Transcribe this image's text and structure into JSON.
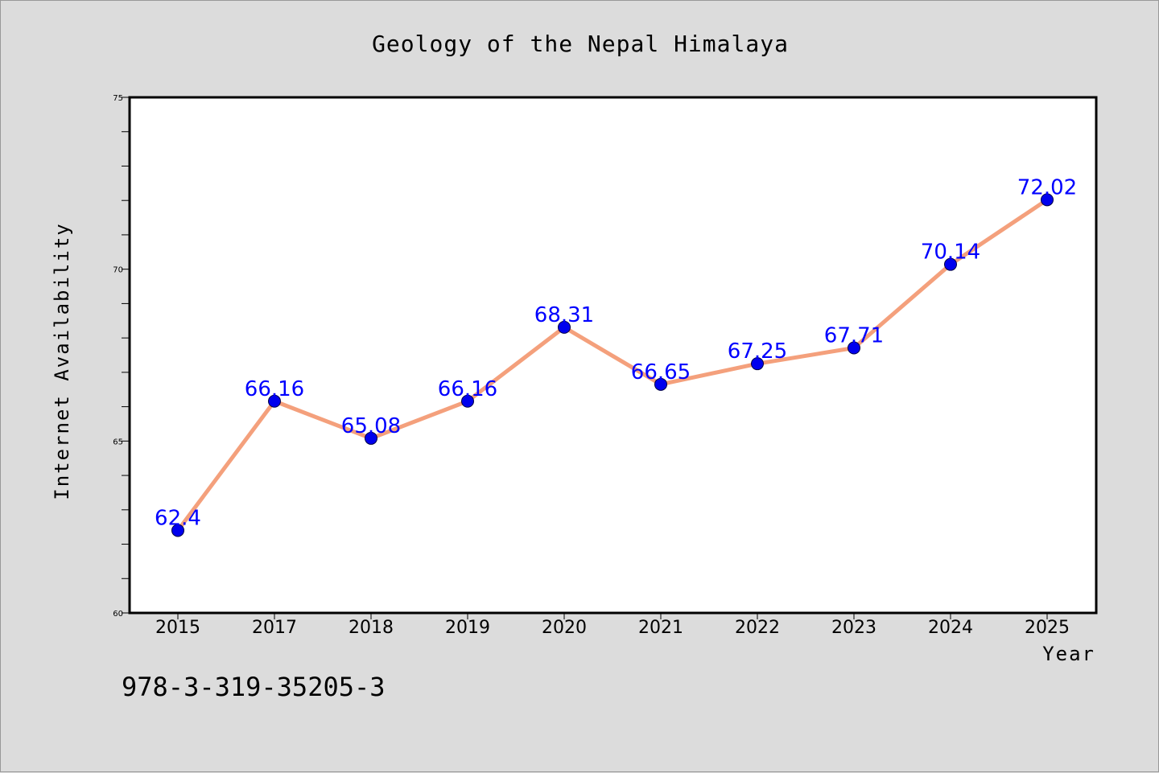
{
  "chart_data": {
    "type": "line",
    "title": "Geology of the Nepal Himalaya",
    "xlabel": "Year",
    "ylabel": "Internet Availability",
    "categories": [
      "2015",
      "2017",
      "2018",
      "2019",
      "2020",
      "2021",
      "2022",
      "2023",
      "2024",
      "2025"
    ],
    "series": [
      {
        "values": [
          62.4,
          66.16,
          65.08,
          66.16,
          68.31,
          66.65,
          67.25,
          67.71,
          70.14,
          72.02
        ],
        "labels": [
          "62.4",
          "66.16",
          "65.08",
          "66.16",
          "68.31",
          "66.65",
          "67.25",
          "67.71",
          "70.14",
          "72.02"
        ],
        "line_color": "#f4a07c",
        "marker_color": "#0000ee"
      }
    ],
    "ylim": [
      60,
      75
    ],
    "yticks": [
      60,
      65,
      70,
      75
    ],
    "ytick_labels": [
      "60",
      "65",
      "70",
      "75"
    ],
    "grid": false,
    "label_color": "#0000ff"
  },
  "footer": {
    "isbn": "978-3-319-35205-3"
  }
}
